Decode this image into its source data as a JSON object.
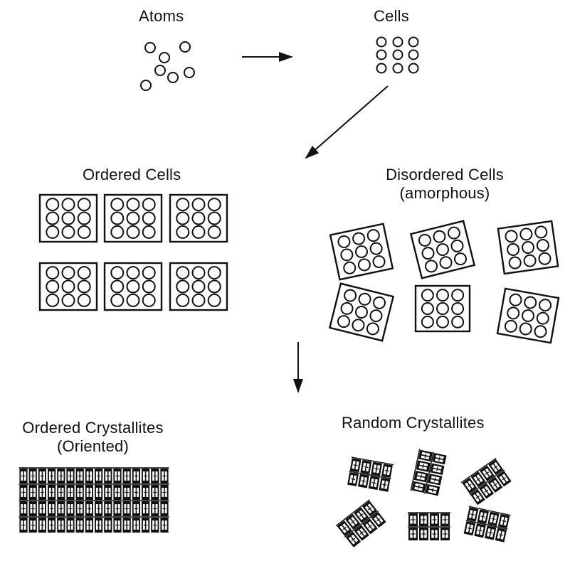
{
  "labels": {
    "atoms": "Atoms",
    "cells": "Cells",
    "ordered_cells": "Ordered Cells",
    "disordered_cells_line1": "Disordered Cells",
    "disordered_cells_line2": "(amorphous)",
    "ordered_crystallites_line1": "Ordered Crystallites",
    "ordered_crystallites_line2": "(Oriented)",
    "random_crystallites": "Random Crystallites"
  },
  "colors": {
    "ink": "#111111",
    "background": "#ffffff"
  }
}
